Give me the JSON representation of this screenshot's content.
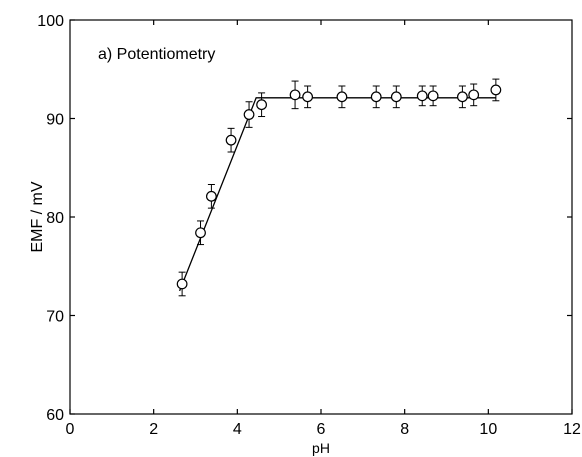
{
  "chart_data": {
    "type": "scatter",
    "annotation": "a) Potentiometry",
    "xlabel": "pH",
    "ylabel": "EMF / mV",
    "xlim": [
      0,
      12
    ],
    "ylim": [
      60,
      100
    ],
    "x_ticks": [
      0,
      2,
      4,
      6,
      8,
      10,
      12
    ],
    "y_ticks": [
      60,
      70,
      80,
      90,
      100
    ],
    "grid": false,
    "series": [
      {
        "marker": "open-circle",
        "color": "#000000",
        "points": [
          {
            "x": 2.68,
            "y": 73.2,
            "err": 1.2
          },
          {
            "x": 3.12,
            "y": 78.4,
            "err": 1.2
          },
          {
            "x": 3.38,
            "y": 82.1,
            "err": 1.2
          },
          {
            "x": 3.85,
            "y": 87.8,
            "err": 1.2
          },
          {
            "x": 4.28,
            "y": 90.4,
            "err": 1.3
          },
          {
            "x": 4.58,
            "y": 91.4,
            "err": 1.2
          },
          {
            "x": 5.38,
            "y": 92.4,
            "err": 1.4
          },
          {
            "x": 5.68,
            "y": 92.2,
            "err": 1.1
          },
          {
            "x": 6.5,
            "y": 92.2,
            "err": 1.1
          },
          {
            "x": 7.32,
            "y": 92.2,
            "err": 1.1
          },
          {
            "x": 7.8,
            "y": 92.2,
            "err": 1.1
          },
          {
            "x": 8.42,
            "y": 92.3,
            "err": 1.0
          },
          {
            "x": 8.68,
            "y": 92.3,
            "err": 1.0
          },
          {
            "x": 9.38,
            "y": 92.2,
            "err": 1.1
          },
          {
            "x": 9.65,
            "y": 92.4,
            "err": 1.1
          },
          {
            "x": 10.18,
            "y": 92.9,
            "err": 1.1
          }
        ]
      }
    ],
    "fit_line": {
      "color": "#000000",
      "points": [
        {
          "x": 2.62,
          "y": 72.5
        },
        {
          "x": 4.45,
          "y": 92.1
        },
        {
          "x": 10.18,
          "y": 92.1
        }
      ]
    }
  }
}
